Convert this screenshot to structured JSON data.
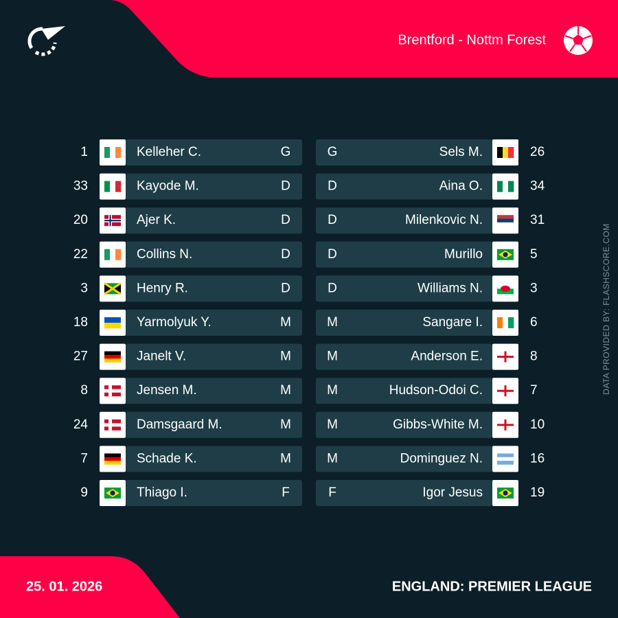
{
  "header": {
    "match": "Brentford - Nottm Forest"
  },
  "home": [
    {
      "number": "1",
      "name": "Kelleher C.",
      "position": "G"
    },
    {
      "number": "33",
      "name": "Kayode M.",
      "position": "D"
    },
    {
      "number": "20",
      "name": "Ajer K.",
      "position": "D"
    },
    {
      "number": "22",
      "name": "Collins N.",
      "position": "D"
    },
    {
      "number": "3",
      "name": "Henry R.",
      "position": "D"
    },
    {
      "number": "18",
      "name": "Yarmolyuk Y.",
      "position": "M"
    },
    {
      "number": "27",
      "name": "Janelt V.",
      "position": "M"
    },
    {
      "number": "8",
      "name": "Jensen M.",
      "position": "M"
    },
    {
      "number": "24",
      "name": "Damsgaard M.",
      "position": "M"
    },
    {
      "number": "7",
      "name": "Schade K.",
      "position": "M"
    },
    {
      "number": "9",
      "name": "Thiago I.",
      "position": "F"
    }
  ],
  "away": [
    {
      "number": "26",
      "name": "Sels M.",
      "position": "G"
    },
    {
      "number": "34",
      "name": "Aina O.",
      "position": "D"
    },
    {
      "number": "31",
      "name": "Milenkovic N.",
      "position": "D"
    },
    {
      "number": "5",
      "name": "Murillo",
      "position": "D"
    },
    {
      "number": "3",
      "name": "Williams N.",
      "position": "D"
    },
    {
      "number": "6",
      "name": "Sangare I.",
      "position": "M"
    },
    {
      "number": "8",
      "name": "Anderson E.",
      "position": "M"
    },
    {
      "number": "7",
      "name": "Hudson-Odoi C.",
      "position": "M"
    },
    {
      "number": "10",
      "name": "Gibbs-White M.",
      "position": "M"
    },
    {
      "number": "16",
      "name": "Dominguez N.",
      "position": "M"
    },
    {
      "number": "19",
      "name": "Igor Jesus",
      "position": "F"
    }
  ],
  "footer": {
    "date": "25. 01. 2026",
    "league": "ENGLAND: PREMIER LEAGUE",
    "source": "DATA PROVIDED BY: FLASHSCORE.COM"
  }
}
